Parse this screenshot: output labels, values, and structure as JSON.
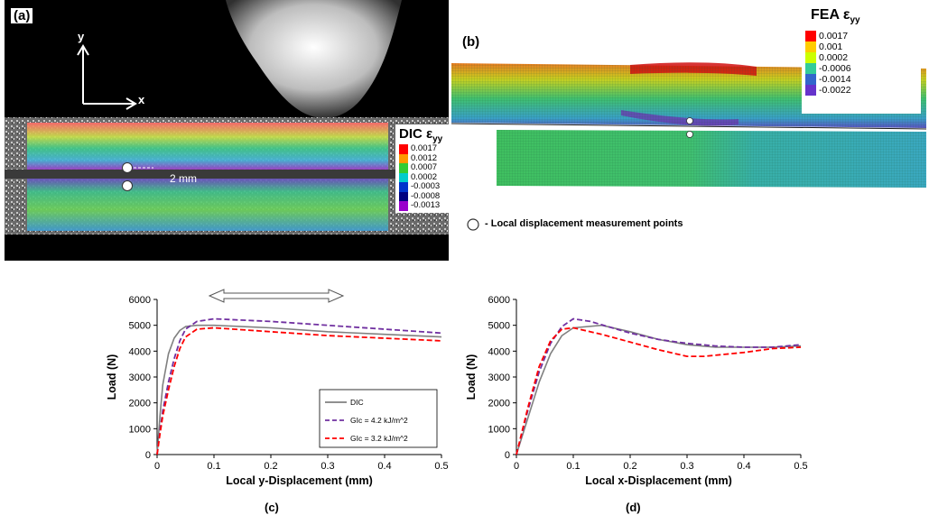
{
  "panel_a": {
    "label": "(a)",
    "axis_y": "y",
    "axis_x": "x",
    "gap_label": "2 mm",
    "legend": {
      "title_main": "DIC ε",
      "title_sub": "yy",
      "entries": [
        {
          "value": "0.0017",
          "color": "#ff0000"
        },
        {
          "value": "0.0012",
          "color": "#ff9900"
        },
        {
          "value": "0.0007",
          "color": "#33cc33"
        },
        {
          "value": "0.0002",
          "color": "#00cccc"
        },
        {
          "value": "-0.0003",
          "color": "#0033cc"
        },
        {
          "value": "-0.0008",
          "color": "#000080"
        },
        {
          "value": "-0.0013",
          "color": "#9900cc"
        }
      ]
    }
  },
  "panel_b": {
    "label": "(b)",
    "legend": {
      "title_main": "FEA ε",
      "title_sub": "yy",
      "entries": [
        {
          "value": "0.0017",
          "color": "#ff0000"
        },
        {
          "value": "0.001",
          "color": "#ffcc00"
        },
        {
          "value": "0.0002",
          "color": "#ccff00"
        },
        {
          "value": "-0.0006",
          "color": "#33cc99"
        },
        {
          "value": "-0.0014",
          "color": "#3366cc"
        },
        {
          "value": "-0.0022",
          "color": "#6633cc"
        }
      ]
    }
  },
  "measurement_note": "- Local displacement measurement points",
  "chart_data": [
    {
      "type": "line",
      "caption": "(c)",
      "xlabel": "Local y-Displacement (mm)",
      "ylabel": "Load (N)",
      "xlim": [
        0,
        0.5
      ],
      "ylim": [
        0,
        6000
      ],
      "xticks": [
        "0",
        "0.1",
        "0.2",
        "0.3",
        "0.4",
        "0.5"
      ],
      "yticks": [
        "0",
        "1000",
        "2000",
        "3000",
        "4000",
        "5000",
        "6000"
      ],
      "legend_position": "bottom-right",
      "series": [
        {
          "name": "DIC",
          "color": "#808080",
          "dash": "solid",
          "points": [
            [
              0,
              0
            ],
            [
              0.005,
              1500
            ],
            [
              0.01,
              2700
            ],
            [
              0.02,
              3900
            ],
            [
              0.03,
              4500
            ],
            [
              0.04,
              4800
            ],
            [
              0.05,
              4950
            ],
            [
              0.07,
              5000
            ],
            [
              0.1,
              5000
            ],
            [
              0.2,
              4900
            ],
            [
              0.3,
              4750
            ],
            [
              0.4,
              4650
            ],
            [
              0.5,
              4550
            ]
          ]
        },
        {
          "name": "GIc = 4.2 kJ/m^2",
          "color": "#7030a0",
          "dash": "dashed",
          "points": [
            [
              0,
              0
            ],
            [
              0.005,
              900
            ],
            [
              0.01,
              1700
            ],
            [
              0.02,
              2800
            ],
            [
              0.03,
              3700
            ],
            [
              0.04,
              4400
            ],
            [
              0.05,
              4850
            ],
            [
              0.07,
              5150
            ],
            [
              0.1,
              5250
            ],
            [
              0.2,
              5150
            ],
            [
              0.3,
              5000
            ],
            [
              0.4,
              4850
            ],
            [
              0.5,
              4700
            ]
          ]
        },
        {
          "name": "GIc = 3.2 kJ/m^2",
          "color": "#ff0000",
          "dash": "dashed",
          "points": [
            [
              0,
              0
            ],
            [
              0.005,
              800
            ],
            [
              0.01,
              1500
            ],
            [
              0.02,
              2500
            ],
            [
              0.03,
              3400
            ],
            [
              0.04,
              4100
            ],
            [
              0.05,
              4550
            ],
            [
              0.07,
              4850
            ],
            [
              0.1,
              4900
            ],
            [
              0.2,
              4750
            ],
            [
              0.3,
              4600
            ],
            [
              0.4,
              4500
            ],
            [
              0.5,
              4400
            ]
          ]
        }
      ]
    },
    {
      "type": "line",
      "caption": "(d)",
      "xlabel": "Local x-Displacement (mm)",
      "ylabel": "Load (N)",
      "xlim": [
        0,
        0.5
      ],
      "ylim": [
        0,
        6000
      ],
      "xticks": [
        "0",
        "0.1",
        "0.2",
        "0.3",
        "0.4",
        "0.5"
      ],
      "yticks": [
        "0",
        "1000",
        "2000",
        "3000",
        "4000",
        "5000",
        "6000"
      ],
      "series": [
        {
          "name": "DIC",
          "color": "#808080",
          "dash": "solid",
          "points": [
            [
              0,
              0
            ],
            [
              0.02,
              1400
            ],
            [
              0.04,
              2800
            ],
            [
              0.06,
              3900
            ],
            [
              0.08,
              4600
            ],
            [
              0.1,
              4900
            ],
            [
              0.15,
              5000
            ],
            [
              0.2,
              4750
            ],
            [
              0.25,
              4450
            ],
            [
              0.3,
              4250
            ],
            [
              0.35,
              4150
            ],
            [
              0.4,
              4150
            ],
            [
              0.45,
              4150
            ],
            [
              0.5,
              4200
            ]
          ]
        },
        {
          "name": "GIc = 4.2 kJ/m^2",
          "color": "#7030a0",
          "dash": "dashed",
          "points": [
            [
              0,
              0
            ],
            [
              0.02,
              1700
            ],
            [
              0.04,
              3200
            ],
            [
              0.06,
              4300
            ],
            [
              0.08,
              4950
            ],
            [
              0.1,
              5250
            ],
            [
              0.13,
              5150
            ],
            [
              0.2,
              4700
            ],
            [
              0.25,
              4450
            ],
            [
              0.3,
              4300
            ],
            [
              0.35,
              4200
            ],
            [
              0.4,
              4150
            ],
            [
              0.45,
              4150
            ],
            [
              0.5,
              4250
            ]
          ]
        },
        {
          "name": "GIc = 3.2 kJ/m^2",
          "color": "#ff0000",
          "dash": "dashed",
          "points": [
            [
              0,
              0
            ],
            [
              0.02,
              1800
            ],
            [
              0.04,
              3400
            ],
            [
              0.06,
              4400
            ],
            [
              0.08,
              4850
            ],
            [
              0.1,
              4900
            ],
            [
              0.15,
              4650
            ],
            [
              0.2,
              4350
            ],
            [
              0.25,
              4050
            ],
            [
              0.3,
              3800
            ],
            [
              0.33,
              3800
            ],
            [
              0.4,
              3950
            ],
            [
              0.45,
              4100
            ],
            [
              0.5,
              4150
            ]
          ]
        }
      ]
    }
  ]
}
